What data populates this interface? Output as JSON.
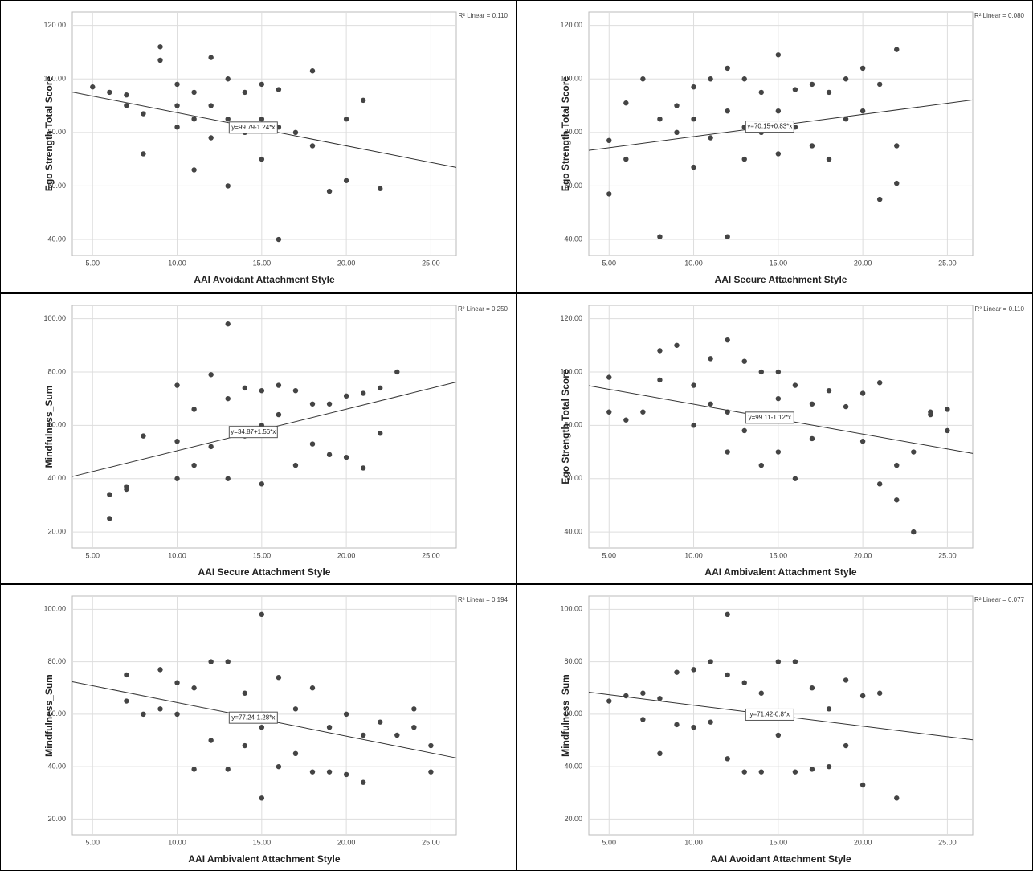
{
  "chart_data": [
    {
      "type": "scatter",
      "x_label": "AAI Avoidant Attachment Style",
      "y_label": "Ego Strength Total Score",
      "r2_label": "R² Linear = 0.110",
      "equation": "y=99.79-1.24*x",
      "fit": {
        "intercept": 99.79,
        "slope": -1.24
      },
      "color": "#444444",
      "grid": true,
      "xlim": [
        3.8,
        26.5
      ],
      "ylim": [
        34,
        125
      ],
      "xticks": [
        {
          "value": 5,
          "label": "5.00"
        },
        {
          "value": 10,
          "label": "10.00"
        },
        {
          "value": 15,
          "label": "15.00"
        },
        {
          "value": 20,
          "label": "20.00"
        },
        {
          "value": 25,
          "label": "25.00"
        }
      ],
      "yticks": [
        {
          "value": 40,
          "label": "40.00"
        },
        {
          "value": 60,
          "label": "60.00"
        },
        {
          "value": 80,
          "label": "80.00"
        },
        {
          "value": 100,
          "label": "100.00"
        },
        {
          "value": 120,
          "label": "120.00"
        }
      ],
      "x": [
        5,
        6,
        7,
        7,
        8,
        8,
        9,
        9,
        10,
        10,
        10,
        11,
        11,
        11,
        12,
        12,
        12,
        13,
        13,
        13,
        14,
        14,
        15,
        15,
        15,
        16,
        16,
        16,
        17,
        18,
        18,
        19,
        20,
        20,
        21,
        22
      ],
      "values": [
        97,
        95,
        94,
        90,
        87,
        72,
        112,
        107,
        98,
        90,
        82,
        95,
        85,
        66,
        108,
        90,
        78,
        100,
        85,
        60,
        95,
        80,
        98,
        85,
        70,
        96,
        82,
        40,
        80,
        103,
        75,
        58,
        85,
        62,
        92,
        59
      ]
    },
    {
      "type": "scatter",
      "x_label": "AAI Secure Attachment Style",
      "y_label": "Ego Strength Total Score",
      "r2_label": "R² Linear = 0.080",
      "equation": "y=70.15+0.83*x",
      "fit": {
        "intercept": 70.15,
        "slope": 0.83
      },
      "color": "#444444",
      "grid": true,
      "xlim": [
        3.8,
        26.5
      ],
      "ylim": [
        34,
        125
      ],
      "xticks": [
        {
          "value": 5,
          "label": "5.00"
        },
        {
          "value": 10,
          "label": "10.00"
        },
        {
          "value": 15,
          "label": "15.00"
        },
        {
          "value": 20,
          "label": "20.00"
        },
        {
          "value": 25,
          "label": "25.00"
        }
      ],
      "yticks": [
        {
          "value": 40,
          "label": "40.00"
        },
        {
          "value": 60,
          "label": "60.00"
        },
        {
          "value": 80,
          "label": "80.00"
        },
        {
          "value": 100,
          "label": "100.00"
        },
        {
          "value": 120,
          "label": "120.00"
        }
      ],
      "x": [
        5,
        5,
        6,
        6,
        7,
        8,
        8,
        9,
        9,
        10,
        10,
        10,
        11,
        11,
        12,
        12,
        12,
        13,
        13,
        13,
        14,
        14,
        15,
        15,
        15,
        16,
        16,
        17,
        17,
        18,
        18,
        19,
        19,
        20,
        20,
        21,
        21,
        22,
        22,
        22
      ],
      "values": [
        77,
        57,
        91,
        70,
        100,
        85,
        41,
        90,
        80,
        97,
        85,
        67,
        100,
        78,
        104,
        88,
        41,
        100,
        82,
        70,
        95,
        80,
        109,
        88,
        72,
        96,
        82,
        98,
        75,
        95,
        70,
        100,
        85,
        104,
        88,
        98,
        55,
        111,
        75,
        61
      ]
    },
    {
      "type": "scatter",
      "x_label": "AAI Secure Attachment Style",
      "y_label": "Mindfulness_Sum",
      "r2_label": "R² Linear = 0.250",
      "equation": "y=34.87+1.56*x",
      "fit": {
        "intercept": 34.87,
        "slope": 1.56
      },
      "color": "#444444",
      "grid": true,
      "xlim": [
        3.8,
        26.5
      ],
      "ylim": [
        14,
        105
      ],
      "xticks": [
        {
          "value": 5,
          "label": "5.00"
        },
        {
          "value": 10,
          "label": "10.00"
        },
        {
          "value": 15,
          "label": "15.00"
        },
        {
          "value": 20,
          "label": "20.00"
        },
        {
          "value": 25,
          "label": "25.00"
        }
      ],
      "yticks": [
        {
          "value": 20,
          "label": "20.00"
        },
        {
          "value": 40,
          "label": "40.00"
        },
        {
          "value": 60,
          "label": "60.00"
        },
        {
          "value": 80,
          "label": "80.00"
        },
        {
          "value": 100,
          "label": "100.00"
        }
      ],
      "x": [
        6,
        6,
        7,
        7,
        8,
        10,
        10,
        10,
        11,
        11,
        12,
        12,
        13,
        13,
        13,
        14,
        14,
        15,
        15,
        15,
        16,
        16,
        17,
        17,
        18,
        18,
        19,
        19,
        20,
        20,
        21,
        21,
        22,
        22,
        23
      ],
      "values": [
        34,
        25,
        37,
        36,
        56,
        75,
        54,
        40,
        66,
        45,
        79,
        52,
        98,
        70,
        40,
        74,
        56,
        73,
        60,
        38,
        75,
        64,
        73,
        45,
        68,
        53,
        68,
        49,
        71,
        48,
        72,
        44,
        74,
        57,
        80
      ]
    },
    {
      "type": "scatter",
      "x_label": "AAI Ambivalent Attachment Style",
      "y_label": "Ego Strength Total Score",
      "r2_label": "R² Linear = 0.110",
      "equation": "y=99.11-1.12*x",
      "fit": {
        "intercept": 99.11,
        "slope": -1.12
      },
      "color": "#444444",
      "grid": true,
      "xlim": [
        3.8,
        26.5
      ],
      "ylim": [
        34,
        125
      ],
      "xticks": [
        {
          "value": 5,
          "label": "5.00"
        },
        {
          "value": 10,
          "label": "10.00"
        },
        {
          "value": 15,
          "label": "15.00"
        },
        {
          "value": 20,
          "label": "20.00"
        },
        {
          "value": 25,
          "label": "25.00"
        }
      ],
      "yticks": [
        {
          "value": 40,
          "label": "40.00"
        },
        {
          "value": 60,
          "label": "60.00"
        },
        {
          "value": 80,
          "label": "80.00"
        },
        {
          "value": 100,
          "label": "100.00"
        },
        {
          "value": 120,
          "label": "120.00"
        }
      ],
      "x": [
        5,
        5,
        6,
        7,
        8,
        8,
        9,
        10,
        10,
        11,
        11,
        12,
        12,
        12,
        13,
        13,
        14,
        14,
        15,
        15,
        15,
        16,
        16,
        17,
        17,
        18,
        19,
        20,
        20,
        21,
        21,
        22,
        22,
        23,
        23,
        24,
        24,
        25,
        25
      ],
      "values": [
        98,
        85,
        82,
        85,
        108,
        97,
        110,
        95,
        80,
        105,
        88,
        112,
        85,
        70,
        104,
        78,
        100,
        65,
        100,
        90,
        70,
        95,
        60,
        88,
        75,
        93,
        87,
        92,
        74,
        96,
        58,
        65,
        52,
        70,
        40,
        85,
        84,
        86,
        78
      ]
    },
    {
      "type": "scatter",
      "x_label": "AAI Ambivalent Attachment Style",
      "y_label": "Mindfulness_Sum",
      "r2_label": "R² Linear = 0.194",
      "equation": "y=77.24-1.28*x",
      "fit": {
        "intercept": 77.24,
        "slope": -1.28
      },
      "color": "#444444",
      "grid": true,
      "xlim": [
        3.8,
        26.5
      ],
      "ylim": [
        14,
        105
      ],
      "xticks": [
        {
          "value": 5,
          "label": "5.00"
        },
        {
          "value": 10,
          "label": "10.00"
        },
        {
          "value": 15,
          "label": "15.00"
        },
        {
          "value": 20,
          "label": "20.00"
        },
        {
          "value": 25,
          "label": "25.00"
        }
      ],
      "yticks": [
        {
          "value": 20,
          "label": "20.00"
        },
        {
          "value": 40,
          "label": "40.00"
        },
        {
          "value": 60,
          "label": "60.00"
        },
        {
          "value": 80,
          "label": "80.00"
        },
        {
          "value": 100,
          "label": "100.00"
        }
      ],
      "x": [
        7,
        7,
        8,
        9,
        9,
        10,
        10,
        11,
        11,
        12,
        12,
        13,
        13,
        14,
        14,
        15,
        15,
        15,
        16,
        16,
        17,
        17,
        18,
        18,
        19,
        19,
        20,
        20,
        21,
        21,
        22,
        23,
        24,
        24,
        25,
        25
      ],
      "values": [
        75,
        65,
        60,
        77,
        62,
        72,
        60,
        70,
        39,
        80,
        50,
        80,
        39,
        68,
        48,
        98,
        55,
        28,
        74,
        40,
        62,
        45,
        70,
        38,
        55,
        38,
        60,
        37,
        52,
        34,
        57,
        52,
        62,
        55,
        48,
        38
      ]
    },
    {
      "type": "scatter",
      "x_label": "AAI Avoidant Attachment Style",
      "y_label": "Mindfulness_Sum",
      "r2_label": "R² Linear = 0.077",
      "equation": "y=71.42-0.8*x",
      "fit": {
        "intercept": 71.42,
        "slope": -0.8
      },
      "color": "#444444",
      "grid": true,
      "xlim": [
        3.8,
        26.5
      ],
      "ylim": [
        14,
        105
      ],
      "xticks": [
        {
          "value": 5,
          "label": "5.00"
        },
        {
          "value": 10,
          "label": "10.00"
        },
        {
          "value": 15,
          "label": "15.00"
        },
        {
          "value": 20,
          "label": "20.00"
        },
        {
          "value": 25,
          "label": "25.00"
        }
      ],
      "yticks": [
        {
          "value": 20,
          "label": "20.00"
        },
        {
          "value": 40,
          "label": "40.00"
        },
        {
          "value": 60,
          "label": "60.00"
        },
        {
          "value": 80,
          "label": "80.00"
        },
        {
          "value": 100,
          "label": "100.00"
        }
      ],
      "x": [
        5,
        6,
        7,
        7,
        8,
        8,
        9,
        9,
        10,
        10,
        11,
        11,
        12,
        12,
        12,
        13,
        13,
        14,
        14,
        15,
        15,
        16,
        16,
        17,
        17,
        18,
        18,
        19,
        19,
        20,
        20,
        21,
        22
      ],
      "values": [
        65,
        67,
        68,
        58,
        66,
        45,
        76,
        56,
        77,
        55,
        80,
        57,
        98,
        75,
        43,
        72,
        38,
        68,
        38,
        80,
        52,
        80,
        38,
        70,
        39,
        62,
        40,
        73,
        48,
        67,
        33,
        68,
        28
      ]
    }
  ]
}
